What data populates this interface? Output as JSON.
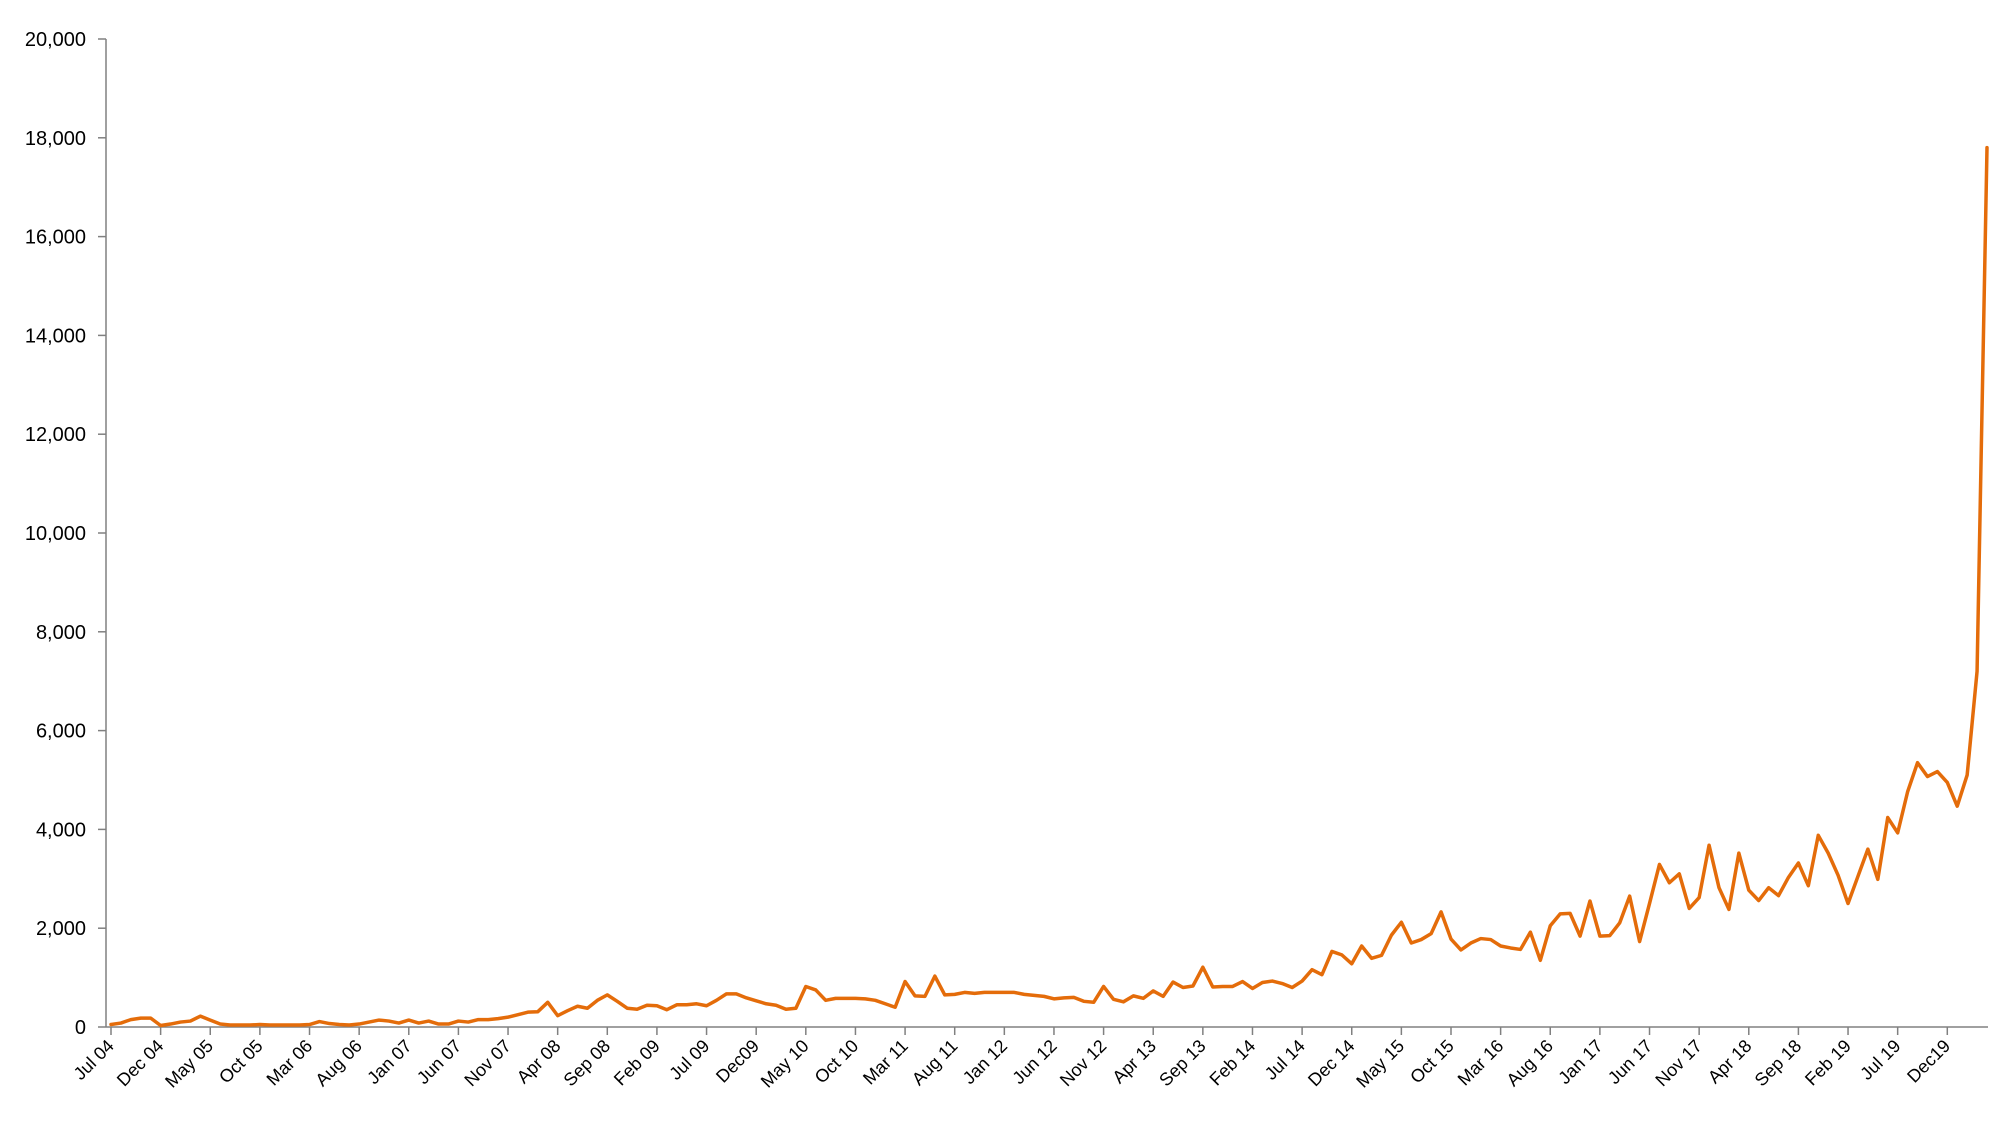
{
  "chart_data": {
    "type": "line",
    "title": "",
    "xlabel": "",
    "ylabel": "",
    "ylim": [
      0,
      20000
    ],
    "yticks": [
      "0",
      "2,000",
      "4,000",
      "6,000",
      "8,000",
      "10,000",
      "12,000",
      "14,000",
      "16,000",
      "18,000",
      "20,000"
    ],
    "xticks": [
      "Jul 04",
      "Dec 04",
      "May 05",
      "Oct 05",
      "Mar 06",
      "Aug 06",
      "Jan 07",
      "Jun 07",
      "Nov 07",
      "Apr 08",
      "Sep 08",
      "Feb 09",
      "Jul 09",
      "Dec09",
      "May 10",
      "Oct 10",
      "Mar 11",
      "Aug 11",
      "Jan 12",
      "Jun 12",
      "Nov 12",
      "Apr 13",
      "Sep 13",
      "Feb 14",
      "Jul 14",
      "Dec 14",
      "May 15",
      "Oct 15",
      "Mar 16",
      "Aug 16",
      "Jan 17",
      "Jun 17",
      "Nov 17",
      "Apr 18",
      "Sep 18",
      "Feb 19",
      "Jul 19",
      "Dec19"
    ],
    "grid": false,
    "legend": "none",
    "series_color": "#E46C0A",
    "axis_color": "#808080",
    "x_start": "Jul 2004",
    "series": [
      {
        "values": [
          50,
          80,
          150,
          180,
          180,
          30,
          60,
          100,
          120,
          220,
          140,
          60,
          40,
          40,
          40,
          50,
          40,
          40,
          40,
          40,
          50,
          110,
          70,
          50,
          40,
          60,
          100,
          140,
          120,
          80,
          140,
          80,
          120,
          60,
          60,
          120,
          100,
          150,
          150,
          170,
          200,
          250,
          300,
          310,
          500,
          230,
          330,
          420,
          380,
          540,
          650,
          520,
          380,
          360,
          440,
          430,
          350,
          450,
          450,
          470,
          430,
          540,
          670,
          670,
          590,
          530,
          470,
          440,
          360,
          380,
          820,
          750,
          540,
          580,
          580,
          580,
          570,
          540,
          470,
          400,
          920,
          630,
          620,
          1030,
          650,
          660,
          700,
          680,
          700,
          700,
          700,
          700,
          660,
          640,
          620,
          570,
          590,
          600,
          520,
          500,
          820,
          560,
          510,
          630,
          580,
          730,
          620,
          910,
          800,
          830,
          1210,
          810,
          820,
          820,
          920,
          780,
          900,
          930,
          880,
          800,
          930,
          1160,
          1060,
          1530,
          1460,
          1280,
          1640,
          1390,
          1450,
          1860,
          2120,
          1700,
          1770,
          1890,
          2330,
          1780,
          1560,
          1700,
          1790,
          1770,
          1640,
          1600,
          1570,
          1920,
          1350,
          2050,
          2290,
          2300,
          1840,
          2550,
          1840,
          1850,
          2110,
          2650,
          1730,
          2500,
          3290,
          2920,
          3100,
          2400,
          2620,
          3680,
          2820,
          2380,
          3520,
          2770,
          2560,
          2820,
          2660,
          3030,
          3320,
          2860,
          3880,
          3520,
          3070,
          2500,
          3050,
          3600,
          2990,
          4240,
          3930,
          4760,
          5350,
          5070,
          5170,
          4950,
          4470,
          5100,
          7200,
          17800
        ]
      }
    ]
  }
}
